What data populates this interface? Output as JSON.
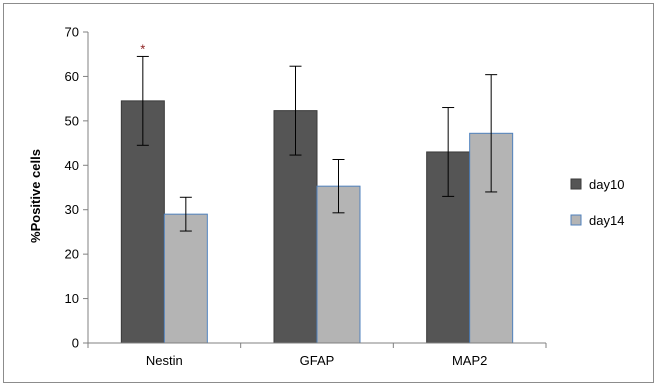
{
  "chart_data": {
    "type": "bar",
    "title": "",
    "xlabel": "",
    "ylabel": "%Positive cells",
    "ylim": [
      0,
      70
    ],
    "yticks": [
      0,
      10,
      20,
      30,
      40,
      50,
      60,
      70
    ],
    "categories": [
      "Nestin",
      "GFAP",
      "MAP2"
    ],
    "series": [
      {
        "name": "day10",
        "color": "#555555",
        "values": [
          54.5,
          52.3,
          43.0
        ],
        "error": [
          10.0,
          10.0,
          10.0
        ]
      },
      {
        "name": "day14",
        "color": "#b4b4b4",
        "values": [
          29.0,
          35.3,
          47.2
        ],
        "error": [
          3.8,
          6.0,
          13.2
        ]
      }
    ],
    "legend_position": "right",
    "grid": false,
    "annotations": [
      {
        "text": "*",
        "category": "Nestin",
        "series": "day10"
      }
    ]
  }
}
